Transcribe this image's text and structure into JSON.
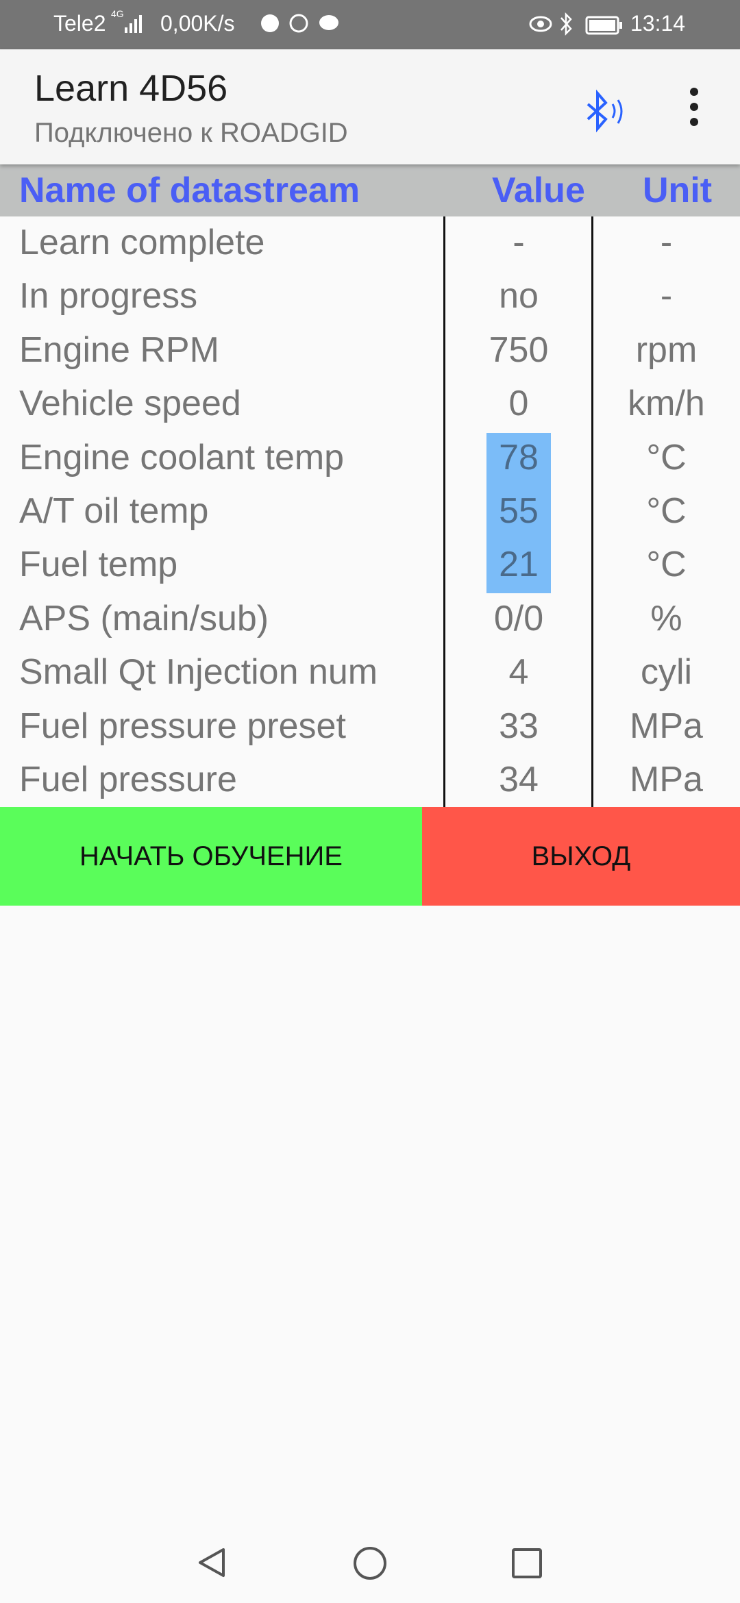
{
  "status_bar": {
    "carrier": "Tele2",
    "network": "4G",
    "speed": "0,00K/s",
    "time": "13:14"
  },
  "app_bar": {
    "title": "Learn 4D56",
    "subtitle": "Подключено к ROADGID"
  },
  "table": {
    "headers": [
      "Name of datastream",
      "Value",
      "Unit"
    ],
    "rows": [
      {
        "name": "Learn complete",
        "value": "-",
        "unit": "-"
      },
      {
        "name": "In progress",
        "value": "no",
        "unit": "-"
      },
      {
        "name": "Engine RPM",
        "value": "750",
        "unit": "rpm"
      },
      {
        "name": "Vehicle speed",
        "value": "0",
        "unit": "km/h"
      },
      {
        "name": "Engine coolant temp",
        "value": "78",
        "unit": "°C",
        "highlighted": true
      },
      {
        "name": "A/T oil temp",
        "value": "55",
        "unit": "°C",
        "highlighted": true
      },
      {
        "name": "Fuel temp",
        "value": "21",
        "unit": "°C",
        "highlighted": true
      },
      {
        "name": "APS (main/sub)",
        "value": "0/0",
        "unit": "%"
      },
      {
        "name": "Small Qt Injection num",
        "value": "4",
        "unit": "cyli"
      },
      {
        "name": "Fuel pressure preset",
        "value": "33",
        "unit": "MPa"
      },
      {
        "name": "Fuel pressure",
        "value": "34",
        "unit": "MPa"
      }
    ]
  },
  "buttons": {
    "start": "НАЧАТЬ ОБУЧЕНИЕ",
    "exit": "ВЫХОД"
  },
  "colors": {
    "header_text": "#4a5ef5",
    "highlight": "#7bbcf8",
    "start": "#5afd5a",
    "exit": "#ff5649",
    "bluetooth": "#2962ff"
  }
}
